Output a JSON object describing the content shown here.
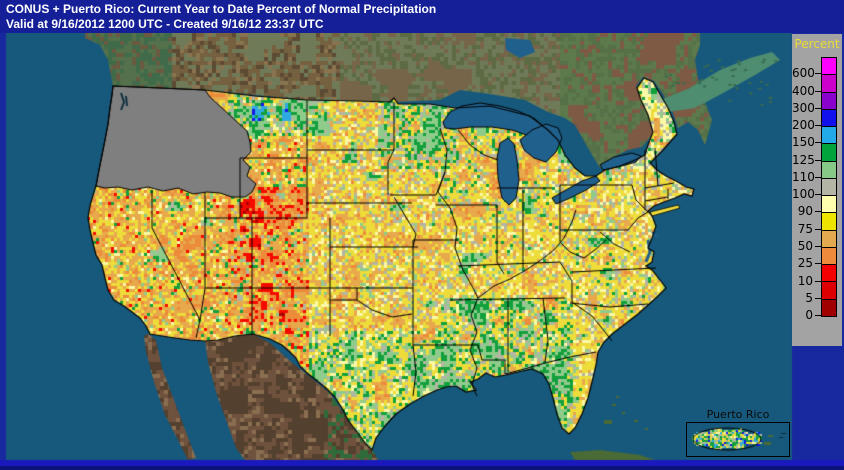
{
  "header": {
    "title_line1": "CONUS + Puerto Rico: Current Year to Date Percent of Normal Precipitation",
    "title_line2": "Valid at 9/16/2012 1200 UTC - Created 9/16/12 23:37 UTC"
  },
  "legend": {
    "title": "Percent",
    "entries": [
      {
        "color": "#FF00FF",
        "label": "600"
      },
      {
        "color": "#CC00CC",
        "label": "400"
      },
      {
        "color": "#8A00CC",
        "label": "300"
      },
      {
        "color": "#1111EE",
        "label": "200"
      },
      {
        "color": "#22A9E8",
        "label": "150"
      },
      {
        "color": "#00A33C",
        "label": "125"
      },
      {
        "color": "#86C986",
        "label": "110"
      },
      {
        "color": "#B5B5A5",
        "label": "100"
      },
      {
        "color": "#FFFFAD",
        "label": "90"
      },
      {
        "color": "#EDE400",
        "label": "75"
      },
      {
        "color": "#E2A94E",
        "label": "50"
      },
      {
        "color": "#ED8A3C",
        "label": "25"
      },
      {
        "color": "#F40000",
        "label": "10"
      },
      {
        "color": "#DE0000",
        "label": "5"
      },
      {
        "color": "#A00000",
        "label": "0"
      }
    ],
    "background": "#A3A3A3",
    "title_color": "#E9DC35"
  },
  "map": {
    "inset_label": "Puerto Rico",
    "colors": {
      "title_bar": "#141F98",
      "frame": "#18289F",
      "bottom_band_bright": "#1919BE",
      "bottom_band_dark": "#0B1278",
      "ocean": "#17597C",
      "lake": "#20608D",
      "no_data_gray": "#7F7F7F"
    }
  }
}
